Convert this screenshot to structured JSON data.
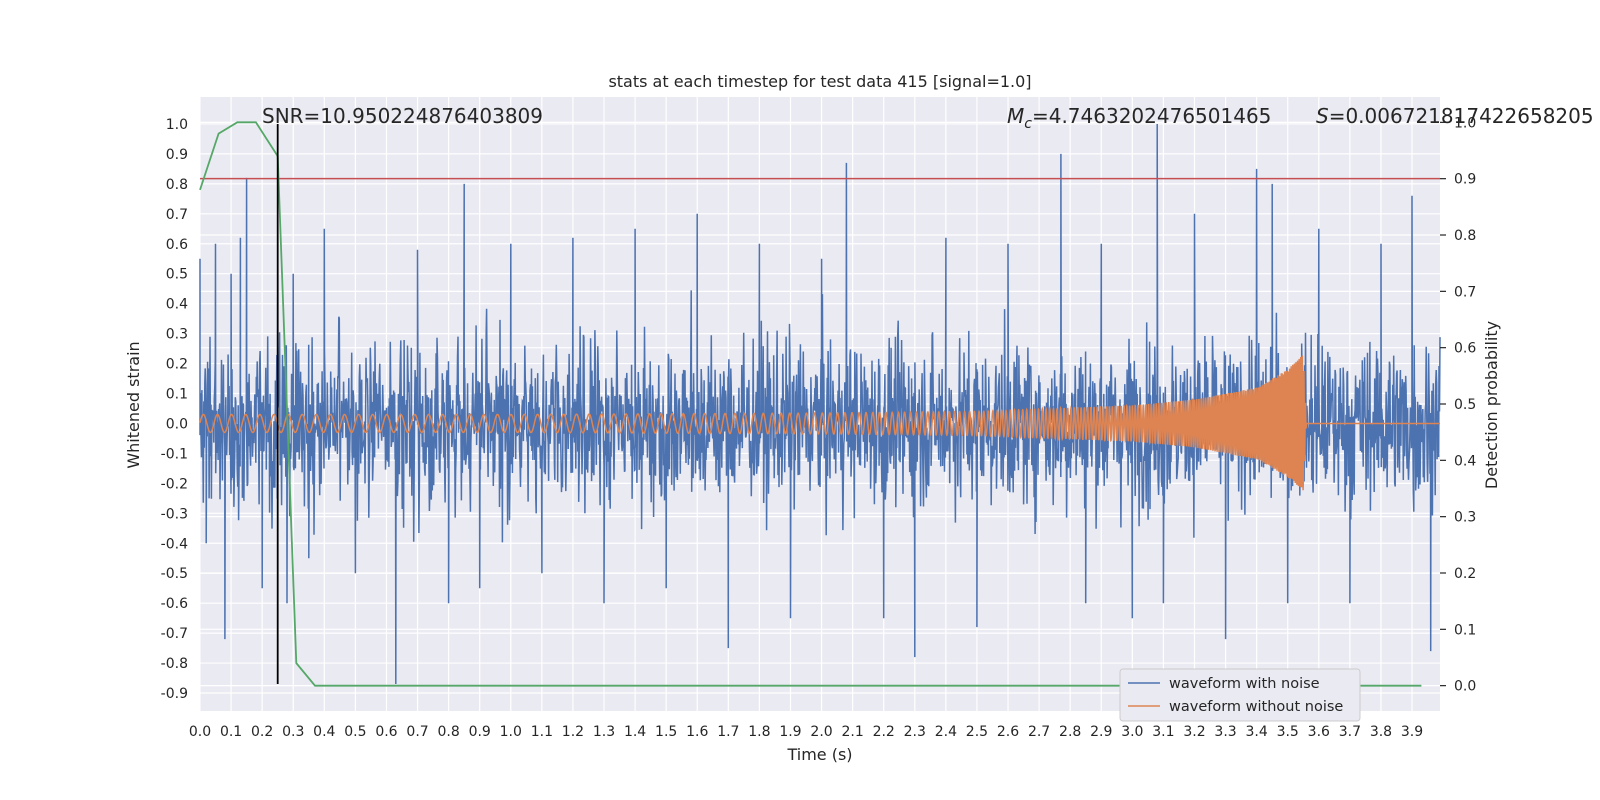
{
  "chart_data": {
    "type": "line",
    "title": "stats at each timestep for test data 415 [signal=1.0]",
    "xlabel": "Time (s)",
    "ylabel": "Whitened strain",
    "y2label": "Detection probability",
    "xlim": [
      0.0,
      3.99
    ],
    "ylim": [
      -0.96,
      1.09
    ],
    "y2lim": [
      -0.045,
      1.045
    ],
    "x_ticks": [
      "0.0",
      "0.1",
      "0.2",
      "0.3",
      "0.4",
      "0.5",
      "0.6",
      "0.7",
      "0.8",
      "0.9",
      "1.0",
      "1.1",
      "1.2",
      "1.3",
      "1.4",
      "1.5",
      "1.6",
      "1.7",
      "1.8",
      "1.9",
      "2.0",
      "2.1",
      "2.2",
      "2.3",
      "2.4",
      "2.5",
      "2.6",
      "2.7",
      "2.8",
      "2.9",
      "3.0",
      "3.1",
      "3.2",
      "3.3",
      "3.4",
      "3.5",
      "3.6",
      "3.7",
      "3.8",
      "3.9"
    ],
    "y_ticks": [
      "-0.9",
      "-0.8",
      "-0.7",
      "-0.6",
      "-0.5",
      "-0.4",
      "-0.3",
      "-0.2",
      "-0.1",
      "0.0",
      "0.1",
      "0.2",
      "0.3",
      "0.4",
      "0.5",
      "0.6",
      "0.7",
      "0.8",
      "0.9",
      "1.0"
    ],
    "y2_ticks": [
      "0.0",
      "0.1",
      "0.2",
      "0.3",
      "0.4",
      "0.5",
      "0.6",
      "0.7",
      "0.8",
      "0.9",
      "1.0"
    ],
    "grid": true,
    "legend_position": "bottom-right",
    "series": [
      {
        "name": "waveform with noise",
        "color": "#4c72b0",
        "axis": "left",
        "x": [
          0.0,
          0.02,
          0.05,
          0.08,
          0.1,
          0.13,
          0.15,
          0.2,
          0.25,
          0.28,
          0.3,
          0.35,
          0.4,
          0.5,
          0.63,
          0.7,
          0.8,
          0.85,
          0.9,
          1.0,
          1.1,
          1.2,
          1.3,
          1.4,
          1.5,
          1.6,
          1.7,
          1.8,
          1.9,
          2.0,
          2.08,
          2.2,
          2.3,
          2.4,
          2.5,
          2.6,
          2.77,
          2.85,
          2.9,
          3.0,
          3.08,
          3.1,
          3.2,
          3.3,
          3.4,
          3.45,
          3.5,
          3.6,
          3.7,
          3.8,
          3.9,
          3.96
        ],
        "y": [
          0.55,
          -0.4,
          0.6,
          -0.72,
          0.5,
          0.62,
          0.82,
          -0.55,
          0.42,
          -0.6,
          0.5,
          -0.45,
          0.65,
          -0.5,
          -0.87,
          0.58,
          -0.6,
          0.8,
          -0.55,
          0.6,
          -0.5,
          0.62,
          -0.6,
          0.65,
          -0.55,
          0.7,
          -0.75,
          0.6,
          -0.65,
          0.55,
          0.87,
          -0.65,
          -0.78,
          0.62,
          -0.68,
          0.6,
          0.9,
          -0.6,
          0.6,
          -0.65,
          1.0,
          -0.6,
          0.7,
          -0.72,
          0.85,
          0.8,
          -0.6,
          0.65,
          -0.6,
          0.6,
          0.76,
          -0.76
        ]
      },
      {
        "name": "waveform without noise",
        "color": "#dd8452",
        "axis": "left",
        "amplitude_envelope": {
          "x": [
            0.0,
            1.0,
            2.0,
            2.5,
            3.0,
            3.2,
            3.4,
            3.5,
            3.55,
            3.56,
            3.99
          ],
          "amp": [
            0.03,
            0.03,
            0.035,
            0.04,
            0.06,
            0.08,
            0.12,
            0.18,
            0.23,
            0.0,
            0.0
          ]
        },
        "cycles_per_second_start": 22,
        "cycles_per_second_end": 200
      },
      {
        "name": "",
        "color": "#55a868",
        "axis": "right",
        "x": [
          0.0,
          0.06,
          0.12,
          0.18,
          0.25,
          0.31,
          0.37,
          1.0,
          2.0,
          3.0,
          3.5,
          3.93
        ],
        "y": [
          0.88,
          0.98,
          1.0,
          1.0,
          0.94,
          0.04,
          0.0,
          0.0,
          0.0,
          0.0,
          0.0,
          0.0
        ]
      }
    ],
    "threshold_line": {
      "axis": "right",
      "value": 0.9,
      "color": "#c44e52"
    },
    "vertical_marker": {
      "x": 0.25,
      "y_from": -0.87,
      "y_to": 1.0,
      "color": "#000000"
    },
    "annotations": {
      "snr": "SNR=10.950224876403809",
      "mc_symbol": "M",
      "mc_sub": "c",
      "mc_value": "=4.7463202476501465",
      "s_symbol": "S",
      "s_value": "=0.006721817422658205"
    }
  }
}
